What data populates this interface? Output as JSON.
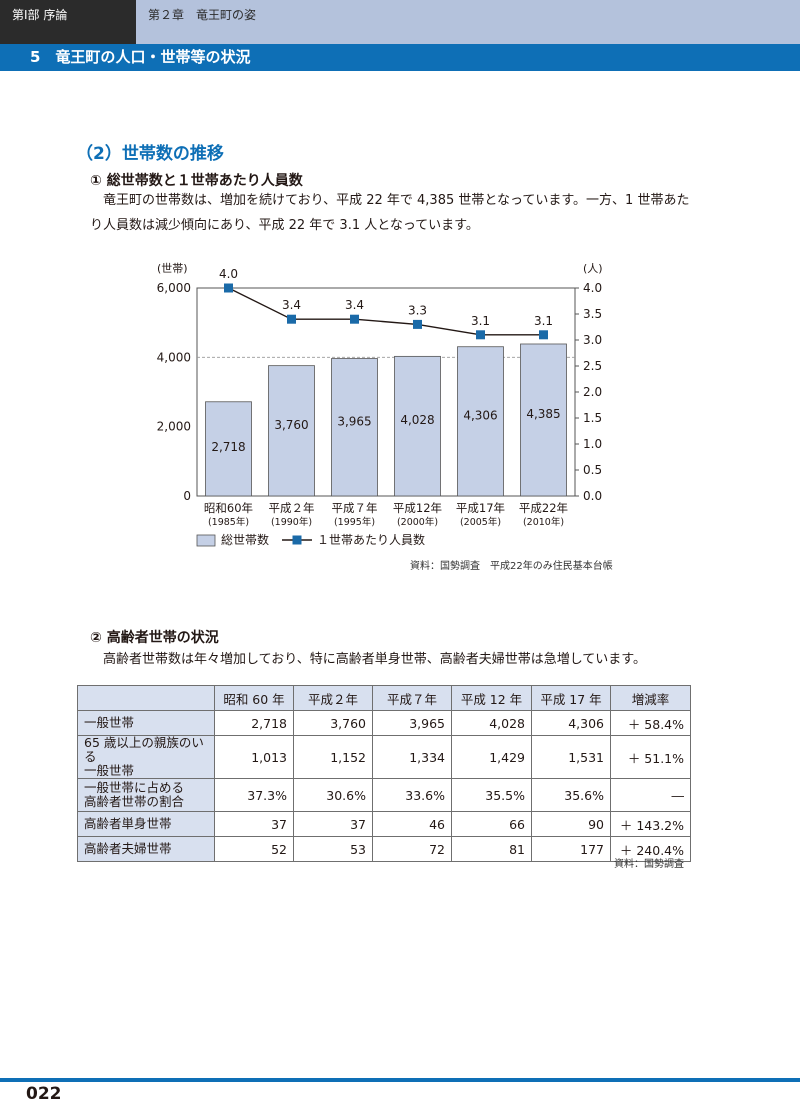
{
  "header": {
    "part": "第Ⅰ部 序論",
    "chapter": "第２章　竜王町の姿",
    "section": "5　竜王町の人口・世帯等の状況"
  },
  "heading": "（2）世帯数の推移",
  "sub1": {
    "title": "① 総世帯数と１世帯あたり人員数",
    "text": "竜王町の世帯数は、増加を続けており、平成 22 年で 4,385 世帯となっています。一方、1 世帯あたり人員数は減少傾向にあり、平成 22 年で 3.1 人となっています。"
  },
  "chart_data": {
    "type": "bar",
    "categories": [
      "昭和60年",
      "平成２年",
      "平成７年",
      "平成12年",
      "平成17年",
      "平成22年"
    ],
    "category_sublabels": [
      "(1985年)",
      "(1990年)",
      "(1995年)",
      "(2000年)",
      "(2005年)",
      "(2010年)"
    ],
    "series": [
      {
        "name": "総世帯数",
        "type": "bar",
        "axis": "left",
        "values": [
          2718,
          3760,
          3965,
          4028,
          4306,
          4385
        ],
        "labels": [
          "2,718",
          "3,760",
          "3,965",
          "4,028",
          "4,306",
          "4,385"
        ]
      },
      {
        "name": "１世帯あたり人員数",
        "type": "line",
        "axis": "right",
        "values": [
          4.0,
          3.4,
          3.4,
          3.3,
          3.1,
          3.1
        ],
        "labels": [
          "4.0",
          "3.4",
          "3.4",
          "3.3",
          "3.1",
          "3.1"
        ]
      }
    ],
    "left_axis": {
      "unit": "(世帯)",
      "ylim": [
        0,
        6000
      ],
      "ticks": [
        "0",
        "2,000",
        "4,000",
        "6,000"
      ]
    },
    "right_axis": {
      "unit": "(人)",
      "ylim": [
        0,
        4.0
      ],
      "ticks": [
        "0.0",
        "0.5",
        "1.0",
        "1.5",
        "2.0",
        "2.5",
        "3.0",
        "3.5",
        "4.0"
      ]
    },
    "grid": "horizontal dashed at 4,000",
    "legend": "bottom-left",
    "colors": {
      "bar": "#c5d0e6",
      "bar_edge": "#555555",
      "line": "#231815",
      "marker": "#1a6aa8"
    }
  },
  "chart_source": "資料：国勢調査　平成22年のみ住民基本台帳",
  "sub2": {
    "title": "② 高齢者世帯の状況",
    "text": "高齢者世帯数は年々増加しており、特に高齢者単身世帯、高齢者夫婦世帯は急増しています。"
  },
  "table": {
    "headers": [
      "",
      "昭和 60 年",
      "平成２年",
      "平成７年",
      "平成 12 年",
      "平成 17 年",
      "増減率"
    ],
    "rows": [
      {
        "label": [
          "一般世帯"
        ],
        "cells": [
          "2,718",
          "3,760",
          "3,965",
          "4,028",
          "4,306",
          "＋ 58.4%"
        ]
      },
      {
        "label": [
          "65 歳以上の親族のいる",
          "一般世帯"
        ],
        "cells": [
          "1,013",
          "1,152",
          "1,334",
          "1,429",
          "1,531",
          "＋ 51.1%"
        ]
      },
      {
        "label": [
          "一般世帯に占める",
          "高齢者世帯の割合"
        ],
        "cells": [
          "37.3%",
          "30.6%",
          "33.6%",
          "35.5%",
          "35.6%",
          "―"
        ]
      },
      {
        "label": [
          "高齢者単身世帯"
        ],
        "cells": [
          "37",
          "37",
          "46",
          "66",
          "90",
          "＋ 143.2%"
        ]
      },
      {
        "label": [
          "高齢者夫婦世帯"
        ],
        "cells": [
          "52",
          "53",
          "72",
          "81",
          "177",
          "＋ 240.4%"
        ]
      }
    ]
  },
  "table_source": "資料：国勢調査",
  "page_number": "022"
}
